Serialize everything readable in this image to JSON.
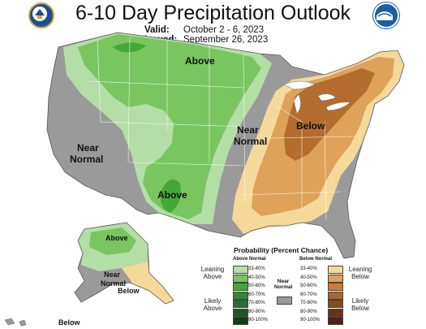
{
  "title": "6-10 Day Precipitation Outlook",
  "valid_label": "Valid:",
  "valid_value": "October 2 - 6, 2023",
  "issued_label": "Issued:",
  "issued_value": "September 26, 2023",
  "logos": {
    "left": "doc-seal-icon",
    "right": "noaa-logo-icon"
  },
  "map": {
    "labels": {
      "above_north": "Above",
      "above_south": "Above",
      "near_west": [
        "Near",
        "Normal"
      ],
      "near_central": [
        "Near",
        "Normal"
      ],
      "below_east": "Below",
      "ak_above": "Above",
      "ak_near": [
        "Near",
        "Normal"
      ],
      "ak_below": "Below",
      "hi_below": "Below"
    },
    "colors": {
      "near_normal": "#9a9a9a",
      "above_33_40": "#b3dea6",
      "above_40_50": "#79c560",
      "above_50_60": "#44a838",
      "below_33_40": "#f5d99a",
      "below_40_50": "#dea25a",
      "below_50_60": "#b46d2e"
    }
  },
  "legend": {
    "title": "Probability (Percent Chance)",
    "above_header": "Above Normal",
    "below_header": "Below Normal",
    "near_label": [
      "Near",
      "Normal"
    ],
    "above_leaning": [
      "Leaning",
      "Above"
    ],
    "above_likely": [
      "Likely",
      "Above"
    ],
    "below_leaning": [
      "Leaning",
      "Below"
    ],
    "below_likely": [
      "Likely",
      "Below"
    ],
    "above": [
      {
        "label": "33-40%",
        "color": "#b3dea6"
      },
      {
        "label": "40-50%",
        "color": "#79c560"
      },
      {
        "label": "50-60%",
        "color": "#44a838"
      },
      {
        "label": "60-70%",
        "color": "#2d8a2d"
      },
      {
        "label": "70-80%",
        "color": "#2b6e31"
      },
      {
        "label": "80-90%",
        "color": "#215625"
      },
      {
        "label": "90-100%",
        "color": "#123d14"
      }
    ],
    "below": [
      {
        "label": "33-40%",
        "color": "#f5d99a"
      },
      {
        "label": "40-50%",
        "color": "#dea25a"
      },
      {
        "label": "50-60%",
        "color": "#c97f35"
      },
      {
        "label": "60-70%",
        "color": "#a9672c"
      },
      {
        "label": "70-80%",
        "color": "#8a4a1f"
      },
      {
        "label": "80-90%",
        "color": "#6b3316"
      },
      {
        "label": "90-100%",
        "color": "#4a2410"
      }
    ]
  }
}
